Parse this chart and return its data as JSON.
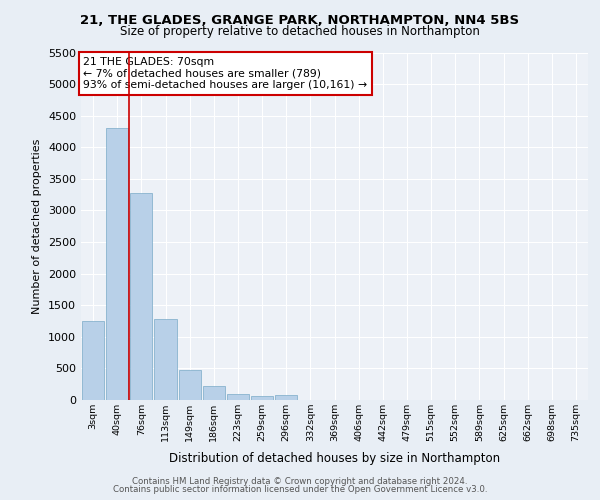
{
  "title1": "21, THE GLADES, GRANGE PARK, NORTHAMPTON, NN4 5BS",
  "title2": "Size of property relative to detached houses in Northampton",
  "xlabel": "Distribution of detached houses by size in Northampton",
  "ylabel": "Number of detached properties",
  "categories": [
    "3sqm",
    "40sqm",
    "76sqm",
    "113sqm",
    "149sqm",
    "186sqm",
    "223sqm",
    "259sqm",
    "296sqm",
    "332sqm",
    "369sqm",
    "406sqm",
    "442sqm",
    "479sqm",
    "515sqm",
    "552sqm",
    "589sqm",
    "625sqm",
    "662sqm",
    "698sqm",
    "735sqm"
  ],
  "values": [
    1250,
    4300,
    3280,
    1280,
    480,
    220,
    100,
    60,
    80,
    0,
    0,
    0,
    0,
    0,
    0,
    0,
    0,
    0,
    0,
    0,
    0
  ],
  "bar_color": "#b8d0e8",
  "bar_edge_color": "#7aaac8",
  "ylim": [
    0,
    5500
  ],
  "yticks": [
    0,
    500,
    1000,
    1500,
    2000,
    2500,
    3000,
    3500,
    4000,
    4500,
    5000,
    5500
  ],
  "red_line_index": 1.5,
  "annotation_line1": "21 THE GLADES: 70sqm",
  "annotation_line2": "← 7% of detached houses are smaller (789)",
  "annotation_line3": "93% of semi-detached houses are larger (10,161) →",
  "annotation_box_color": "#ffffff",
  "annotation_box_edge_color": "#cc0000",
  "footer1": "Contains HM Land Registry data © Crown copyright and database right 2024.",
  "footer2": "Contains public sector information licensed under the Open Government Licence v3.0.",
  "background_color": "#e8eef5",
  "plot_bg_color": "#edf1f7",
  "grid_color": "#ffffff"
}
